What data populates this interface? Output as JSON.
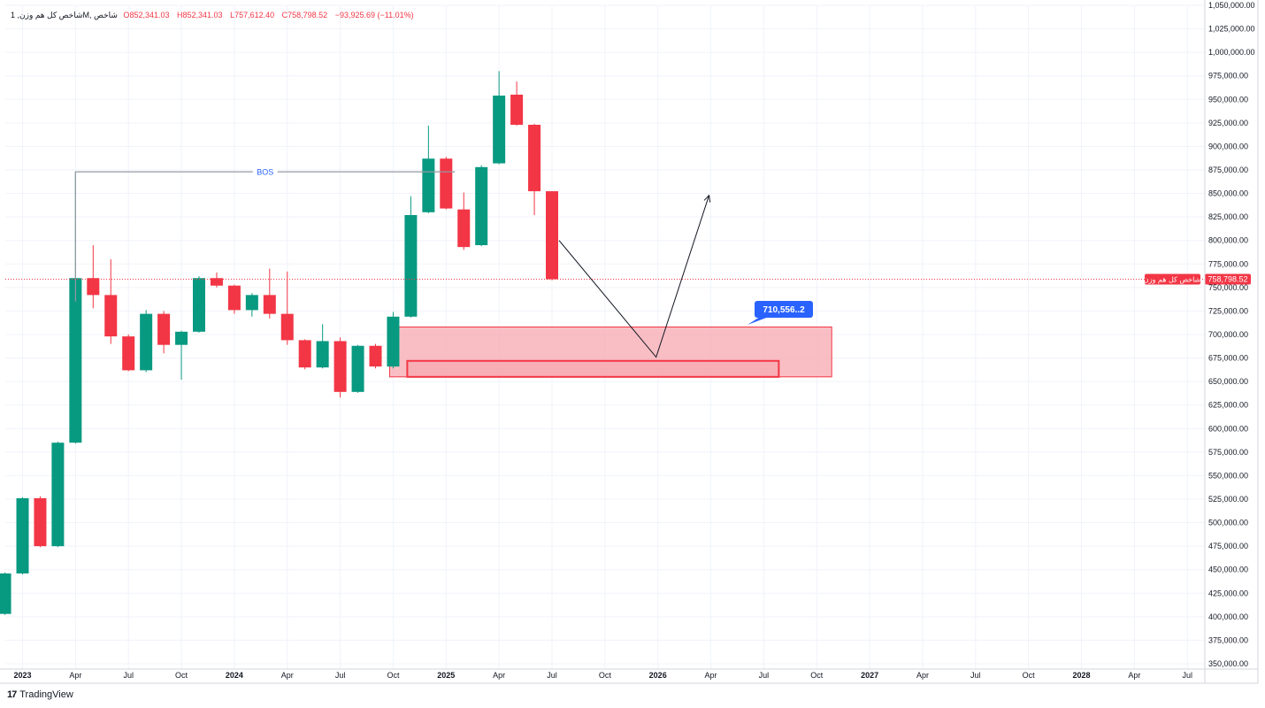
{
  "header": {
    "symbol": "شاخص کل هم وزن, 1M, شاخص",
    "open_label": "O",
    "open": "852,341.03",
    "high_label": "H",
    "high": "852,341.03",
    "low_label": "L",
    "low": "757,612.40",
    "close_label": "C",
    "close": "758,798.52",
    "change": "−93,925.69 (−11.01%)"
  },
  "price_tag": {
    "name": "شاخص کل هم وزن",
    "value": "758,798.52",
    "price": 758798.52,
    "color": "#f23645"
  },
  "annotations": {
    "bos_label": "BOS",
    "bos_price": 873000,
    "callout_label": "710,556..2",
    "callout_color": "#2962ff"
  },
  "footer": {
    "brand": "TradingView"
  },
  "colors": {
    "up": "#089981",
    "down": "#f23645",
    "zone_fill": "#f7a8b0",
    "zone_border": "#f23645"
  },
  "chart_data": {
    "type": "candlestick",
    "timeframe": "1M",
    "ylim": [
      350000,
      1050000
    ],
    "y_ticks": [
      350000,
      375000,
      400000,
      425000,
      450000,
      475000,
      500000,
      525000,
      550000,
      575000,
      600000,
      625000,
      650000,
      675000,
      700000,
      725000,
      750000,
      775000,
      800000,
      825000,
      850000,
      875000,
      900000,
      925000,
      950000,
      975000,
      1000000,
      1025000,
      1050000
    ],
    "y_tick_labels": [
      "350,000.00",
      "375,000.00",
      "400,000.00",
      "425,000.00",
      "450,000.00",
      "475,000.00",
      "500,000.00",
      "525,000.00",
      "550,000.00",
      "575,000.00",
      "600,000.00",
      "625,000.00",
      "650,000.00",
      "675,000.00",
      "700,000.00",
      "725,000.00",
      "750,000.00",
      "775,000.00",
      "800,000.00",
      "825,000.00",
      "850,000.00",
      "875,000.00",
      "900,000.00",
      "925,000.00",
      "950,000.00",
      "975,000.00",
      "1,000,000.00",
      "1,025,000.00",
      "1,050,000.00"
    ],
    "x_ticks": [
      {
        "label": "2023",
        "month": 0,
        "year": true
      },
      {
        "label": "Apr",
        "month": 3
      },
      {
        "label": "Jul",
        "month": 6
      },
      {
        "label": "Oct",
        "month": 9
      },
      {
        "label": "2024",
        "month": 12,
        "year": true
      },
      {
        "label": "Apr",
        "month": 15
      },
      {
        "label": "Jul",
        "month": 18
      },
      {
        "label": "Oct",
        "month": 21
      },
      {
        "label": "2025",
        "month": 24,
        "year": true
      },
      {
        "label": "Apr",
        "month": 27
      },
      {
        "label": "Jul",
        "month": 30
      },
      {
        "label": "Oct",
        "month": 33
      },
      {
        "label": "2026",
        "month": 36,
        "year": true
      },
      {
        "label": "Apr",
        "month": 39
      },
      {
        "label": "Jul",
        "month": 42
      },
      {
        "label": "Oct",
        "month": 45
      },
      {
        "label": "2027",
        "month": 48,
        "year": true
      },
      {
        "label": "Apr",
        "month": 51
      },
      {
        "label": "Jul",
        "month": 54
      },
      {
        "label": "Oct",
        "month": 57
      },
      {
        "label": "2028",
        "month": 60,
        "year": true
      },
      {
        "label": "Apr",
        "month": 63
      },
      {
        "label": "Jul",
        "month": 66
      }
    ],
    "candles": [
      {
        "m": -1,
        "o": 403000,
        "h": 447000,
        "l": 402000,
        "c": 446000
      },
      {
        "m": 0,
        "o": 446000,
        "h": 527000,
        "l": 445000,
        "c": 526000
      },
      {
        "m": 1,
        "o": 526000,
        "h": 528000,
        "l": 474000,
        "c": 475000
      },
      {
        "m": 2,
        "o": 475000,
        "h": 586000,
        "l": 474000,
        "c": 585000
      },
      {
        "m": 3,
        "o": 585000,
        "h": 873000,
        "l": 584000,
        "c": 760000
      },
      {
        "m": 4,
        "o": 760000,
        "h": 795000,
        "l": 728000,
        "c": 742000
      },
      {
        "m": 5,
        "o": 742000,
        "h": 780000,
        "l": 690000,
        "c": 698000
      },
      {
        "m": 6,
        "o": 698000,
        "h": 700000,
        "l": 661000,
        "c": 662000
      },
      {
        "m": 7,
        "o": 662000,
        "h": 726000,
        "l": 660000,
        "c": 722000
      },
      {
        "m": 8,
        "o": 722000,
        "h": 725000,
        "l": 680000,
        "c": 689000
      },
      {
        "m": 9,
        "o": 689000,
        "h": 704000,
        "l": 652000,
        "c": 703000
      },
      {
        "m": 10,
        "o": 703000,
        "h": 762000,
        "l": 702000,
        "c": 760000
      },
      {
        "m": 11,
        "o": 760000,
        "h": 766000,
        "l": 750000,
        "c": 752000
      },
      {
        "m": 12,
        "o": 752000,
        "h": 753000,
        "l": 722000,
        "c": 726000
      },
      {
        "m": 13,
        "o": 726000,
        "h": 744000,
        "l": 719000,
        "c": 742000
      },
      {
        "m": 14,
        "o": 742000,
        "h": 770000,
        "l": 717000,
        "c": 722000
      },
      {
        "m": 15,
        "o": 722000,
        "h": 767000,
        "l": 689000,
        "c": 694000
      },
      {
        "m": 16,
        "o": 694000,
        "h": 695000,
        "l": 663000,
        "c": 665000
      },
      {
        "m": 17,
        "o": 665000,
        "h": 711000,
        "l": 664000,
        "c": 693000
      },
      {
        "m": 18,
        "o": 693000,
        "h": 697000,
        "l": 633000,
        "c": 639000
      },
      {
        "m": 19,
        "o": 639000,
        "h": 689000,
        "l": 638000,
        "c": 688000
      },
      {
        "m": 20,
        "o": 688000,
        "h": 690000,
        "l": 664000,
        "c": 666000
      },
      {
        "m": 21,
        "o": 666000,
        "h": 724000,
        "l": 664000,
        "c": 719000
      },
      {
        "m": 22,
        "o": 719000,
        "h": 847000,
        "l": 718000,
        "c": 827000
      },
      {
        "m": 23,
        "o": 830000,
        "h": 922000,
        "l": 829000,
        "c": 887000
      },
      {
        "m": 24,
        "o": 887000,
        "h": 889000,
        "l": 833000,
        "c": 834000
      },
      {
        "m": 25,
        "o": 833000,
        "h": 851000,
        "l": 790000,
        "c": 793000
      },
      {
        "m": 26,
        "o": 795000,
        "h": 880000,
        "l": 794000,
        "c": 878000
      },
      {
        "m": 27,
        "o": 882000,
        "h": 980000,
        "l": 881000,
        "c": 954000
      },
      {
        "m": 28,
        "o": 955000,
        "h": 969000,
        "l": 922000,
        "c": 923000
      },
      {
        "m": 29,
        "o": 923000,
        "h": 924000,
        "l": 827000,
        "c": 852341.03
      },
      {
        "m": 30,
        "o": 852341.03,
        "h": 852341.03,
        "l": 757612.4,
        "c": 758798.52
      }
    ],
    "zones": [
      {
        "m_start": 21,
        "m_end": 46,
        "top": 708000,
        "bottom": 655000
      },
      {
        "m_start": 22,
        "m_end": 43,
        "top": 672000,
        "bottom": 655000
      }
    ],
    "path": [
      {
        "m": 30.4,
        "p": 800000
      },
      {
        "m": 35.9,
        "p": 676000
      },
      {
        "m": 38.9,
        "p": 848000
      }
    ],
    "bos": {
      "m_start": 3,
      "m_end": 24.5
    }
  }
}
